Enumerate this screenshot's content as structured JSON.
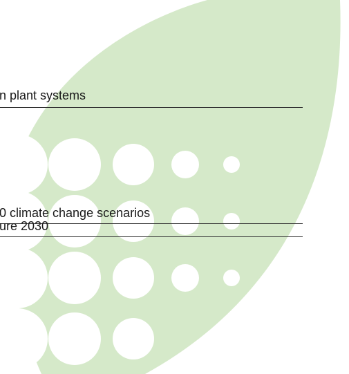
{
  "entries": [
    {
      "text": "n plant systems"
    },
    {
      "text": "0 climate change scenarios"
    },
    {
      "text": "ure 2030"
    }
  ]
}
